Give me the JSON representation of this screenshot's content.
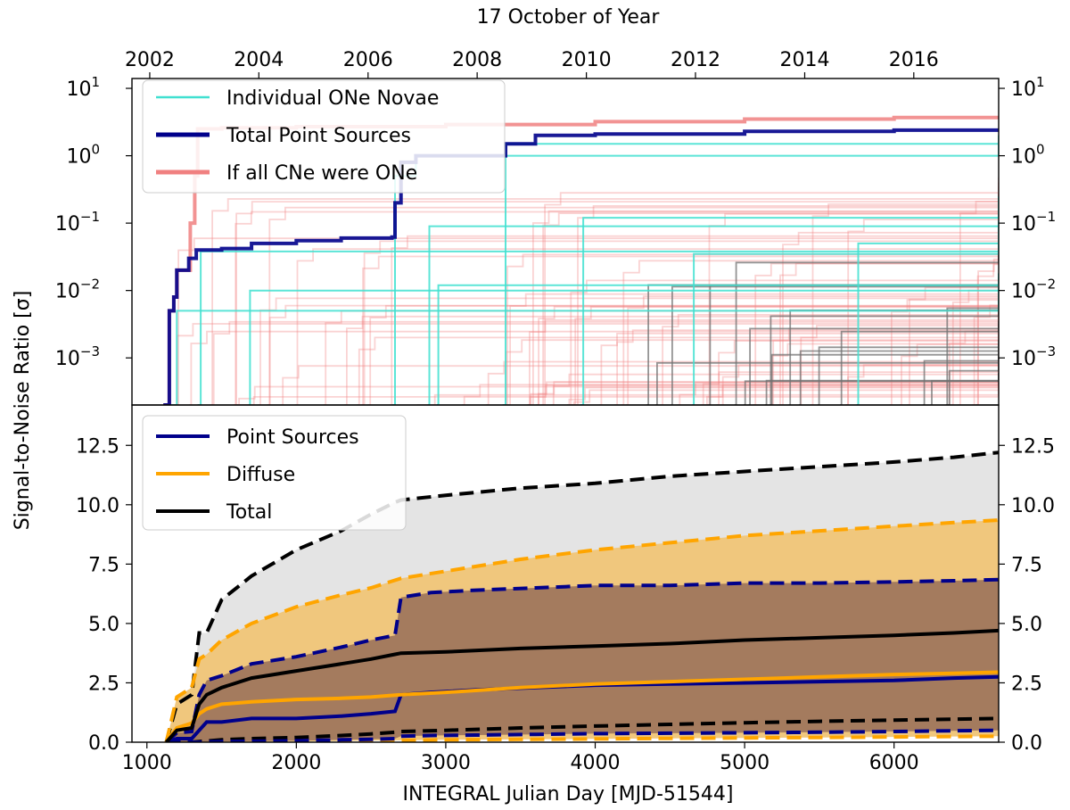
{
  "figure": {
    "ylabel": "Signal-to-Noise Ratio [σ]",
    "xlabel": "INTEGRAL Julian Day [MJD-51544]",
    "top_xlabel": "17 October of Year"
  },
  "chart_data": [
    {
      "type": "line",
      "panel": "top",
      "yscale": "log",
      "ylim": [
        0.0002,
        14
      ],
      "xlim": [
        900,
        6700
      ],
      "grid": false,
      "legend_position": "top-left",
      "y_ticks": [
        {
          "value": 10,
          "base": "10",
          "exp": "1"
        },
        {
          "value": 1,
          "base": "10",
          "exp": "0"
        },
        {
          "value": 0.1,
          "base": "10",
          "exp": "−1"
        },
        {
          "value": 0.01,
          "base": "10",
          "exp": "−2"
        },
        {
          "value": 0.001,
          "base": "10",
          "exp": "−3"
        }
      ],
      "top_x_ticks": [
        {
          "label": "2002",
          "x": 1019
        },
        {
          "label": "2004",
          "x": 1749
        },
        {
          "label": "2006",
          "x": 2480
        },
        {
          "label": "2008",
          "x": 3210
        },
        {
          "label": "2010",
          "x": 3941
        },
        {
          "label": "2012",
          "x": 4671
        },
        {
          "label": "2014",
          "x": 5402
        },
        {
          "label": "2016",
          "x": 6132
        }
      ],
      "colors": {
        "novae": "#40e0d0",
        "total": "#00008b",
        "all_one": "#f08080"
      },
      "series": [
        {
          "name": "Individual ONe Novae",
          "color": "#40e0d0",
          "individual": [
            {
              "start": 1160,
              "points": [
                [
                  1160,
                  0.0002
                ],
                [
                  1200,
                  0.005
                ],
                [
                  6700,
                  0.012
                ]
              ]
            },
            {
              "start": 1340,
              "points": [
                [
                  1340,
                  0.0002
                ],
                [
                  1360,
                  0.038
                ],
                [
                  6700,
                  0.07
                ]
              ]
            },
            {
              "start": 1680,
              "points": [
                [
                  1680,
                  0.0002
                ],
                [
                  1690,
                  0.01
                ],
                [
                  6700,
                  0.013
                ]
              ]
            },
            {
              "start": 2640,
              "points": [
                [
                  2640,
                  0.0002
                ],
                [
                  2660,
                  0.5
                ],
                [
                  2800,
                  1.0
                ],
                [
                  6700,
                  1.6
                ]
              ]
            },
            {
              "start": 2880,
              "points": [
                [
                  2880,
                  0.0002
                ],
                [
                  2890,
                  0.09
                ],
                [
                  6700,
                  0.1
                ]
              ]
            },
            {
              "start": 2940,
              "points": [
                [
                  2940,
                  0.0002
                ],
                [
                  2950,
                  0.012
                ],
                [
                  6700,
                  0.018
                ]
              ]
            },
            {
              "start": 3380,
              "points": [
                [
                  3380,
                  0.0002
                ],
                [
                  3400,
                  1.5
                ],
                [
                  6700,
                  2.0
                ]
              ]
            },
            {
              "start": 3900,
              "points": [
                [
                  3900,
                  0.0002
                ],
                [
                  3920,
                  0.12
                ],
                [
                  6700,
                  0.25
                ]
              ]
            },
            {
              "start": 4650,
              "points": [
                [
                  4650,
                  0.0002
                ],
                [
                  4660,
                  0.035
                ],
                [
                  6700,
                  0.05
                ]
              ]
            },
            {
              "start": 5750,
              "points": [
                [
                  5750,
                  0.0002
                ],
                [
                  5760,
                  0.05
                ],
                [
                  6700,
                  0.11
                ]
              ]
            }
          ]
        },
        {
          "name": "Total Point Sources",
          "color": "#00008b",
          "points": [
            [
              1110,
              0.0002
            ],
            [
              1140,
              0.0002
            ],
            [
              1150,
              0.005
            ],
            [
              1180,
              0.008
            ],
            [
              1200,
              0.02
            ],
            [
              1270,
              0.02
            ],
            [
              1280,
              0.03
            ],
            [
              1330,
              0.04
            ],
            [
              1500,
              0.042
            ],
            [
              1700,
              0.05
            ],
            [
              2000,
              0.055
            ],
            [
              2300,
              0.06
            ],
            [
              2640,
              0.062
            ],
            [
              2660,
              0.2
            ],
            [
              2700,
              0.8
            ],
            [
              2800,
              1.0
            ],
            [
              3400,
              1.5
            ],
            [
              3600,
              2.0
            ],
            [
              4000,
              2.1
            ],
            [
              5000,
              2.3
            ],
            [
              6000,
              2.4
            ],
            [
              6700,
              2.5
            ]
          ]
        },
        {
          "name": "If all CNe were ONe",
          "color": "#f08080",
          "points": [
            [
              1110,
              0.0002
            ],
            [
              1140,
              0.0002
            ],
            [
              1150,
              0.005
            ],
            [
              1180,
              0.008
            ],
            [
              1200,
              0.02
            ],
            [
              1270,
              0.02
            ],
            [
              1290,
              0.1
            ],
            [
              1320,
              0.5
            ],
            [
              1340,
              2.5
            ],
            [
              1500,
              2.6
            ],
            [
              2000,
              2.7
            ],
            [
              3000,
              2.9
            ],
            [
              4000,
              3.2
            ],
            [
              5000,
              3.5
            ],
            [
              6000,
              3.7
            ],
            [
              6700,
              3.8
            ]
          ]
        }
      ]
    },
    {
      "type": "area",
      "panel": "bottom",
      "ylim": [
        0,
        14.2
      ],
      "xlim": [
        900,
        6700
      ],
      "grid": false,
      "legend_position": "top-left",
      "y_ticks": [
        0.0,
        2.5,
        5.0,
        7.5,
        10.0,
        12.5
      ],
      "x_ticks": [
        1000,
        2000,
        3000,
        4000,
        5000,
        6000
      ],
      "colors": {
        "point": "#00008b",
        "diffuse": "#ffa500",
        "total": "#000000",
        "band_total": "#e4e4e4",
        "band_diffuse": "#f0c77d",
        "band_point": "#a47b5e"
      },
      "series": [
        {
          "name": "Point Sources",
          "color": "#00008b",
          "x": [
            1130,
            1200,
            1300,
            1350,
            1400,
            1500,
            1700,
            2000,
            2300,
            2500,
            2660,
            2700,
            2900,
            3200,
            3600,
            4000,
            4500,
            5000,
            5500,
            6000,
            6400,
            6700
          ],
          "value": [
            0,
            0.15,
            0.15,
            0.5,
            0.85,
            0.85,
            1.0,
            1.0,
            1.1,
            1.2,
            1.3,
            2.0,
            2.1,
            2.2,
            2.3,
            2.4,
            2.45,
            2.5,
            2.55,
            2.6,
            2.7,
            2.75
          ],
          "upper": [
            0,
            0.4,
            0.45,
            2.0,
            2.6,
            2.8,
            3.3,
            3.6,
            4.0,
            4.3,
            4.5,
            6.1,
            6.3,
            6.4,
            6.5,
            6.6,
            6.6,
            6.7,
            6.7,
            6.75,
            6.8,
            6.85
          ],
          "lower": [
            0,
            0,
            0,
            0,
            0.02,
            0.03,
            0.04,
            0.06,
            0.1,
            0.12,
            0.15,
            0.25,
            0.28,
            0.3,
            0.33,
            0.36,
            0.38,
            0.4,
            0.42,
            0.45,
            0.48,
            0.5
          ]
        },
        {
          "name": "Diffuse",
          "color": "#ffa500",
          "x": [
            1130,
            1200,
            1300,
            1350,
            1400,
            1500,
            1700,
            2000,
            2300,
            2500,
            2700,
            3000,
            3500,
            4000,
            4500,
            5000,
            5500,
            6000,
            6400,
            6700
          ],
          "value": [
            0,
            0.6,
            0.8,
            1.2,
            1.4,
            1.6,
            1.7,
            1.8,
            1.85,
            1.9,
            2.0,
            2.1,
            2.3,
            2.45,
            2.55,
            2.65,
            2.75,
            2.85,
            2.9,
            2.95
          ],
          "upper": [
            0,
            1.9,
            2.3,
            3.5,
            3.7,
            4.3,
            5.0,
            5.7,
            6.2,
            6.5,
            6.9,
            7.2,
            7.7,
            8.1,
            8.4,
            8.7,
            8.9,
            9.1,
            9.25,
            9.35
          ],
          "lower": [
            0,
            0,
            0,
            0,
            0,
            0,
            0.02,
            0.03,
            0.05,
            0.07,
            0.08,
            0.1,
            0.12,
            0.14,
            0.16,
            0.18,
            0.2,
            0.22,
            0.24,
            0.25
          ]
        },
        {
          "name": "Total",
          "color": "#000000",
          "x": [
            1130,
            1200,
            1300,
            1350,
            1400,
            1500,
            1700,
            2000,
            2300,
            2500,
            2660,
            2700,
            3000,
            3500,
            4000,
            4500,
            5000,
            5500,
            6000,
            6400,
            6700
          ],
          "value": [
            0,
            0.5,
            0.6,
            1.6,
            2.0,
            2.3,
            2.7,
            3.0,
            3.3,
            3.5,
            3.7,
            3.75,
            3.8,
            3.95,
            4.05,
            4.15,
            4.3,
            4.4,
            4.5,
            4.6,
            4.7
          ],
          "upper": [
            0,
            1.6,
            2.0,
            4.6,
            4.6,
            6.0,
            7.0,
            8.1,
            8.9,
            9.6,
            10.1,
            10.2,
            10.4,
            10.7,
            10.9,
            11.2,
            11.4,
            11.6,
            11.8,
            12.0,
            12.2
          ],
          "lower": [
            0,
            0,
            0,
            0.03,
            0.05,
            0.1,
            0.15,
            0.2,
            0.28,
            0.35,
            0.42,
            0.45,
            0.5,
            0.6,
            0.68,
            0.75,
            0.82,
            0.88,
            0.93,
            0.97,
            1.0
          ]
        }
      ]
    }
  ]
}
